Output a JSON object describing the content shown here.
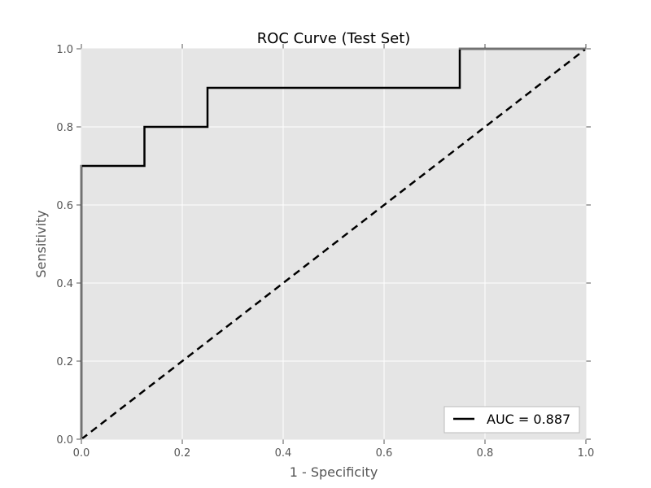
{
  "chart_data": {
    "type": "line",
    "title": "ROC Curve (Test Set)",
    "xlabel": "1 - Specificity",
    "ylabel": "Sensitivity",
    "xlim": [
      0.0,
      1.0
    ],
    "ylim": [
      0.0,
      1.0
    ],
    "xticks": [
      "0.0",
      "0.2",
      "0.4",
      "0.6",
      "0.8",
      "1.0"
    ],
    "yticks": [
      "0.0",
      "0.2",
      "0.4",
      "0.6",
      "0.8",
      "1.0"
    ],
    "grid": true,
    "background": "#e5e5e5",
    "grid_color": "#ffffff",
    "legend_position": "lower-right",
    "series": [
      {
        "name": "AUC = 0.887",
        "color": "#000000",
        "style": "solid",
        "x": [
          0.0,
          0.0,
          0.0,
          0.125,
          0.125,
          0.25,
          0.25,
          0.75,
          0.75,
          1.0
        ],
        "y": [
          0.0,
          0.1,
          0.7,
          0.7,
          0.8,
          0.8,
          0.9,
          0.9,
          1.0,
          1.0
        ]
      },
      {
        "color": "#000000",
        "style": "dashed",
        "x": [
          0.0,
          1.0
        ],
        "y": [
          0.0,
          1.0
        ]
      }
    ]
  }
}
